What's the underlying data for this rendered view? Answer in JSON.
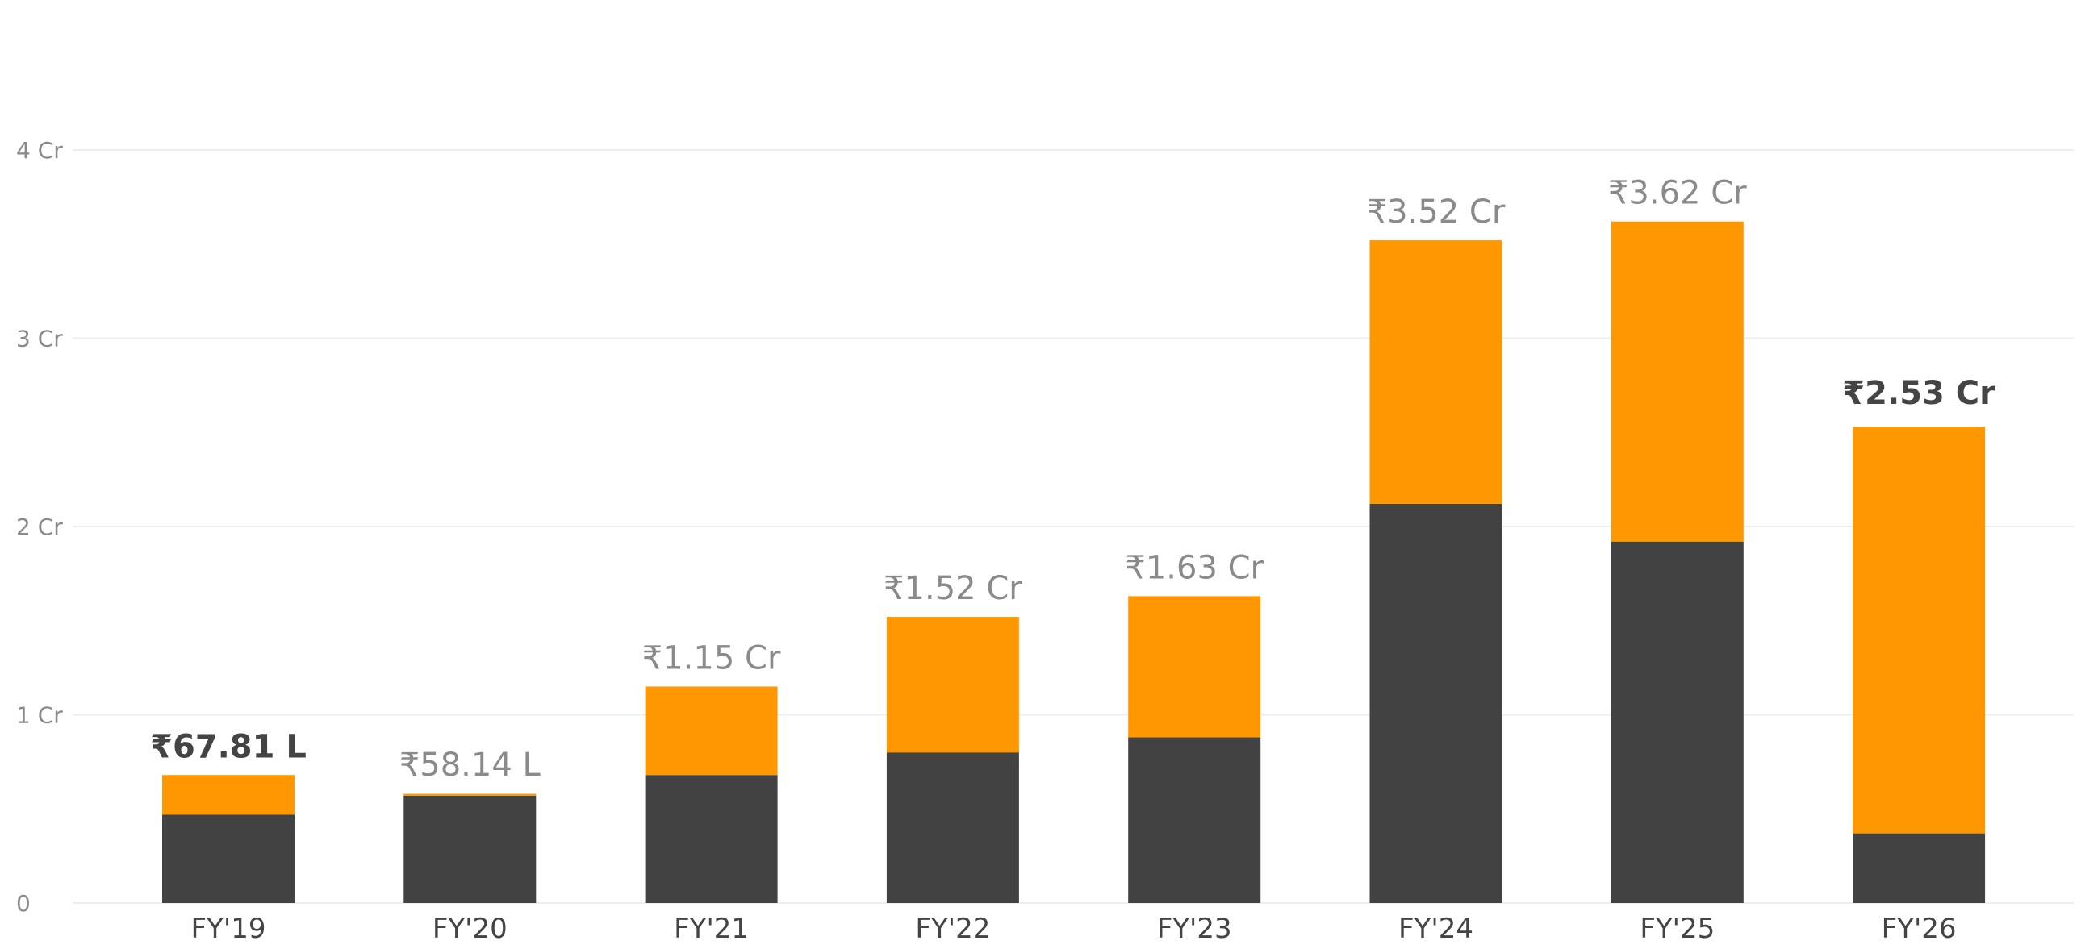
{
  "chart_data": {
    "type": "bar",
    "stacked": true,
    "categories": [
      "FY'19",
      "FY'20",
      "FY'21",
      "FY'22",
      "FY'23",
      "FY'24",
      "FY'25",
      "FY'26"
    ],
    "series": [
      {
        "values": [
          0.47,
          0.57,
          0.68,
          0.8,
          0.88,
          2.12,
          1.92,
          0.37
        ],
        "color": "#424242"
      },
      {
        "values": [
          0.21,
          0.01,
          0.47,
          0.72,
          0.75,
          1.4,
          1.7,
          2.16
        ],
        "color": "#FF9800"
      }
    ],
    "totals": [
      0.6781,
      0.5814,
      1.15,
      1.52,
      1.63,
      3.52,
      3.62,
      2.53
    ],
    "total_labels": [
      "₹67.81 L",
      "₹58.14 L",
      "₹1.15 Cr",
      "₹1.52 Cr",
      "₹1.63 Cr",
      "₹3.52 Cr",
      "₹3.62 Cr",
      "₹2.53 Cr"
    ],
    "highlighted_labels": [
      0,
      7
    ],
    "y_ticks": [
      0,
      1,
      2,
      3,
      4
    ],
    "y_tick_labels": [
      "0",
      "1 Cr",
      "2 Cr",
      "3 Cr",
      "4 Cr"
    ],
    "ylim": [
      0,
      4
    ],
    "grid": true,
    "legend": "none",
    "title": "",
    "xlabel": "",
    "ylabel": ""
  }
}
